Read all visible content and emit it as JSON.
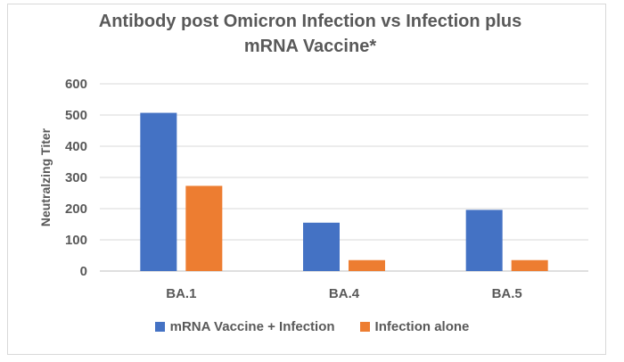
{
  "chart_data": {
    "type": "bar",
    "title_lines": [
      "Antibody post Omicron Infection vs Infection plus",
      "mRNA Vaccine*"
    ],
    "xlabel": "",
    "ylabel": "Neutralzing Titer",
    "categories": [
      "BA.1",
      "BA.4",
      "BA.5"
    ],
    "series": [
      {
        "name": "mRNA Vaccine + Infection",
        "values": [
          507,
          155,
          196
        ],
        "color": "#4472C4"
      },
      {
        "name": "Infection alone",
        "values": [
          273,
          35,
          35
        ],
        "color": "#ED7D31"
      }
    ],
    "ylim": [
      0,
      600
    ],
    "yticks": [
      0,
      100,
      200,
      300,
      400,
      500,
      600
    ],
    "grid": true,
    "legend_position": "bottom"
  }
}
